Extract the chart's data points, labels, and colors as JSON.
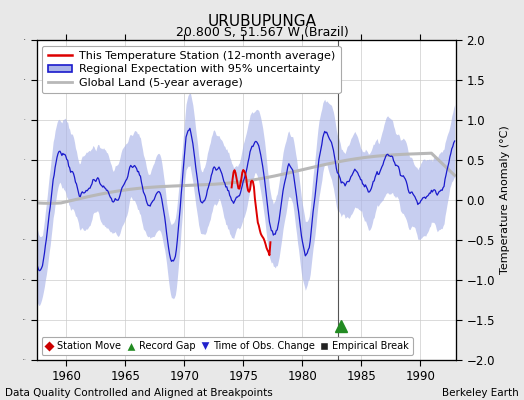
{
  "title": "URUBUPUNGA",
  "subtitle": "20.800 S, 51.567 W (Brazil)",
  "ylabel": "Temperature Anomaly (°C)",
  "xlabel_footer": "Data Quality Controlled and Aligned at Breakpoints",
  "footer_right": "Berkeley Earth",
  "xlim": [
    1957.5,
    1993
  ],
  "ylim": [
    -2,
    2
  ],
  "yticks": [
    -2,
    -1.5,
    -1,
    -0.5,
    0,
    0.5,
    1,
    1.5,
    2
  ],
  "xticks": [
    1960,
    1965,
    1970,
    1975,
    1980,
    1985,
    1990
  ],
  "bg_color": "#e8e8e8",
  "plot_bg_color": "#ffffff",
  "regional_fill_color": "#aab4e8",
  "regional_line_color": "#1a1acc",
  "station_line_color": "#dd0000",
  "global_land_color": "#b8b8b8",
  "record_gap_x": 1983.3,
  "record_gap_y": -1.58,
  "vertical_line_x": 1983,
  "title_fontsize": 11,
  "subtitle_fontsize": 9,
  "legend_fontsize": 8,
  "tick_fontsize": 8.5,
  "footer_fontsize": 7.5
}
